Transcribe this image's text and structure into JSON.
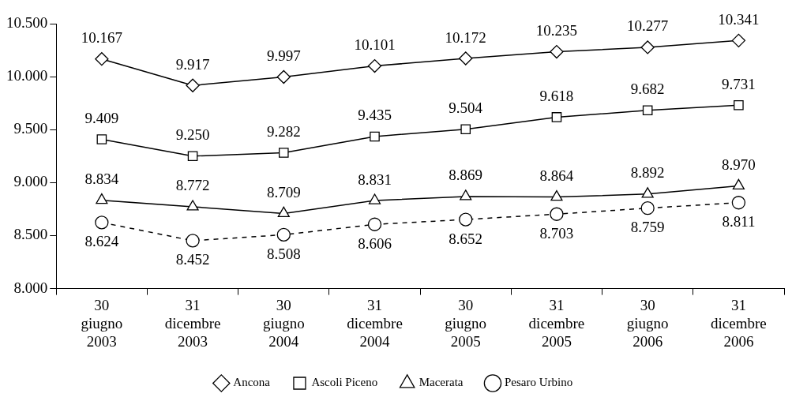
{
  "chart_data": {
    "type": "line",
    "categories": [
      "30 giugno 2003",
      "31 dicembre 2003",
      "30 giugno 2004",
      "31 dicembre 2004",
      "30 giugno 2005",
      "31 dicembre 2005",
      "30 giugno 2006",
      "31 dicembre 2006"
    ],
    "series": [
      {
        "name": "Ancona",
        "color": "#000000",
        "marker": "diamond",
        "line_style": "solid",
        "values": [
          10167,
          9917,
          9997,
          10101,
          10172,
          10235,
          10277,
          10341
        ],
        "value_labels": [
          "10.167",
          "9.917",
          "9.997",
          "10.101",
          "10.172",
          "10.235",
          "10.277",
          "10.341"
        ]
      },
      {
        "name": "Ascoli Piceno",
        "color": "#000000",
        "marker": "square",
        "line_style": "solid",
        "values": [
          9409,
          9250,
          9282,
          9435,
          9504,
          9618,
          9682,
          9731
        ],
        "value_labels": [
          "9.409",
          "9.250",
          "9.282",
          "9.435",
          "9.504",
          "9.618",
          "9.682",
          "9.731"
        ]
      },
      {
        "name": "Macerata",
        "color": "#000000",
        "marker": "triangle",
        "line_style": "solid",
        "values": [
          8834,
          8772,
          8709,
          8831,
          8869,
          8864,
          8892,
          8970
        ],
        "value_labels": [
          "8.834",
          "8.772",
          "8.709",
          "8.831",
          "8.869",
          "8.864",
          "8.892",
          "8.970"
        ]
      },
      {
        "name": "Pesaro Urbino",
        "color": "#000000",
        "marker": "circle",
        "line_style": "dashed",
        "values": [
          8624,
          8452,
          8508,
          8606,
          8652,
          8703,
          8759,
          8811
        ],
        "value_labels": [
          "8.624",
          "8.452",
          "8.508",
          "8.606",
          "8.652",
          "8.703",
          "8.759",
          "8.811"
        ]
      }
    ],
    "ylim": [
      8000,
      10500
    ],
    "yticks": [
      {
        "value": 8000,
        "label": "8.000"
      },
      {
        "value": 8500,
        "label": "8.500"
      },
      {
        "value": 9000,
        "label": "9.000"
      },
      {
        "value": 9500,
        "label": "9.500"
      },
      {
        "value": 10000,
        "label": "10.000"
      },
      {
        "value": 10500,
        "label": "10.500"
      }
    ],
    "grid": false,
    "legend": "bottom"
  }
}
